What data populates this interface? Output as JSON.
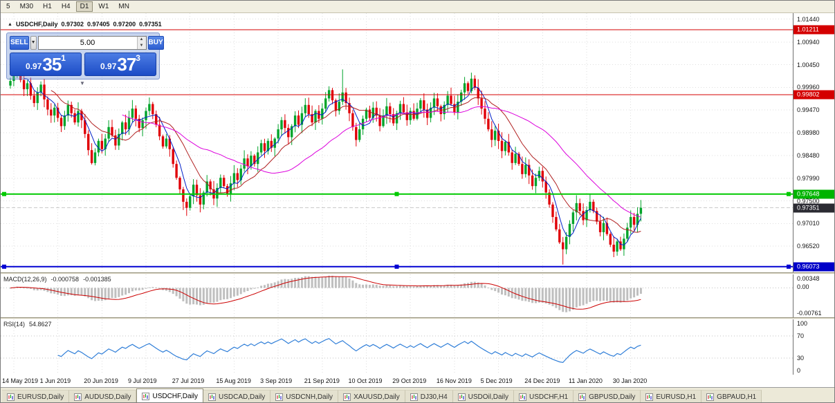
{
  "toolbar": {
    "timeframes": [
      "5",
      "M30",
      "H1",
      "H4",
      "D1",
      "W1",
      "MN"
    ],
    "active": "D1"
  },
  "chart_header": {
    "symbol": "USDCHF,Daily",
    "open": "0.97302",
    "high": "0.97405",
    "low": "0.97200",
    "close": "0.97351"
  },
  "one_click": {
    "sell_label": "SELL",
    "buy_label": "BUY",
    "volume": "5.00",
    "sell_price": {
      "small": "0.97",
      "big": "35",
      "sup": "1"
    },
    "buy_price": {
      "small": "0.97",
      "big": "37",
      "sup": "3"
    },
    "collapse_icon": "▼"
  },
  "price_axis": {
    "ticks": [
      "1.01440",
      "1.00940",
      "1.00450",
      "0.99960",
      "0.99470",
      "0.98980",
      "0.98480",
      "0.97990",
      "0.97500",
      "0.97010",
      "0.96520"
    ],
    "bid_badge": "0.97351",
    "bid_badge_bg": "#2b2b33"
  },
  "hlines": [
    {
      "price": 1.01211,
      "label": "1.01211",
      "color": "#d40000",
      "badge_bg": "#d40000",
      "width": 1,
      "handles": false
    },
    {
      "price": 0.99802,
      "label": "0.99802",
      "color": "#d40000",
      "badge_bg": "#d40000",
      "width": 1,
      "handles": false
    },
    {
      "price": 0.97648,
      "label": "0.97648",
      "color": "#00ca00",
      "badge_bg": "#00b400",
      "width": 2,
      "handles": true
    },
    {
      "price": 0.96073,
      "label": "0.96073",
      "color": "#0000d2",
      "badge_bg": "#0000c8",
      "width": 2,
      "handles": true
    }
  ],
  "macd_panel": {
    "label": "MACD(12,26,9)",
    "value_main": "-0.000758",
    "value_signal": "-0.001385",
    "axis_top": "0.00348",
    "axis_zero": "0.00",
    "axis_bottom": "-0.00761",
    "scale_max": 0.00348,
    "scale_min": -0.00761
  },
  "rsi_panel": {
    "label": "RSI(14)",
    "value": "54.8627",
    "axis": [
      "100",
      "70",
      "30",
      "0"
    ],
    "levels": [
      70,
      30
    ]
  },
  "date_axis": {
    "labels": [
      "14 May 2019",
      "1 Jun 2019",
      "20 Jun 2019",
      "9 Jul 2019",
      "27 Jul 2019",
      "15 Aug 2019",
      "3 Sep 2019",
      "21 Sep 2019",
      "10 Oct 2019",
      "29 Oct 2019",
      "16 Nov 2019",
      "5 Dec 2019",
      "24 Dec 2019",
      "11 Jan 2020",
      "30 Jan 2020"
    ],
    "bars": [
      1,
      14,
      27,
      40,
      53,
      66,
      79,
      92,
      105,
      118,
      131,
      144,
      157,
      170,
      183
    ]
  },
  "tabs": {
    "items": [
      "EURUSD,Daily",
      "AUDUSD,Daily",
      "USDCHF,Daily",
      "USDCAD,Daily",
      "USDCNH,Daily",
      "XAUUSD,Daily",
      "DJ30,H4",
      "USDOil,Daily",
      "USDCHF,H1",
      "GBPUSD,Daily",
      "EURUSD,H1",
      "GBPAUD,H1"
    ],
    "active_index": 2
  },
  "chart_data": {
    "type": "candlestick",
    "symbol": "USDCHF",
    "timeframe": "Daily",
    "price_range": [
      0.9595,
      1.0157
    ],
    "first_open": 1.0,
    "closes": [
      1.001,
      1.0028,
      1.0035,
      1.0012,
      0.9992,
      1.0005,
      0.9978,
      0.9962,
      0.9985,
      1.0002,
      0.997,
      0.9948,
      0.9935,
      0.9952,
      0.993,
      0.9912,
      0.9935,
      0.9958,
      0.994,
      0.992,
      0.9945,
      0.9925,
      0.9895,
      0.986,
      0.9832,
      0.9855,
      0.988,
      0.9862,
      0.9885,
      0.991,
      0.9892,
      0.987,
      0.9895,
      0.992,
      0.9905,
      0.993,
      0.995,
      0.9928,
      0.9908,
      0.9925,
      0.9945,
      0.996,
      0.9938,
      0.9915,
      0.989,
      0.9868,
      0.9885,
      0.9862,
      0.983,
      0.98,
      0.9775,
      0.9748,
      0.9735,
      0.976,
      0.9785,
      0.9762,
      0.9742,
      0.9768,
      0.9792,
      0.9775,
      0.9755,
      0.9778,
      0.98,
      0.9782,
      0.9765,
      0.9788,
      0.981,
      0.9795,
      0.982,
      0.9842,
      0.9825,
      0.9848,
      0.983,
      0.9855,
      0.9875,
      0.9858,
      0.988,
      0.9865,
      0.9885,
      0.9905,
      0.9925,
      0.9908,
      0.9888,
      0.9912,
      0.9935,
      0.9915,
      0.994,
      0.9958,
      0.9938,
      0.992,
      0.9945,
      0.9928,
      0.995,
      0.9972,
      0.999,
      0.9968,
      0.9945,
      0.9965,
      0.9985,
      0.9962,
      0.994,
      0.991,
      0.9882,
      0.9905,
      0.9928,
      0.9948,
      0.993,
      0.9952,
      0.9935,
      0.9912,
      0.9935,
      0.9955,
      0.9938,
      0.9918,
      0.994,
      0.996,
      0.9942,
      0.9925,
      0.9945,
      0.9928,
      0.995,
      0.9968,
      0.9948,
      0.993,
      0.9952,
      0.9972,
      0.9955,
      0.9938,
      0.9958,
      0.9978,
      0.996,
      0.9942,
      0.9965,
      0.9985,
      1.0005,
      0.9988,
      1.0015,
      0.9995,
      0.9972,
      0.995,
      0.9928,
      0.9905,
      0.9882,
      0.9902,
      0.988,
      0.9858,
      0.9878,
      0.9855,
      0.9832,
      0.9852,
      0.983,
      0.9808,
      0.9828,
      0.9805,
      0.9782,
      0.98,
      0.9815,
      0.9792,
      0.9768,
      0.9742,
      0.9715,
      0.9688,
      0.966,
      0.9645,
      0.9672,
      0.97,
      0.9725,
      0.9745,
      0.9728,
      0.9708,
      0.973,
      0.9748,
      0.9728,
      0.9705,
      0.9682,
      0.9702,
      0.9678,
      0.9655,
      0.964,
      0.9662,
      0.9645,
      0.9668,
      0.9692,
      0.9715,
      0.9698,
      0.9722,
      0.9735
    ],
    "overrides": {
      "high": {
        "2": 1.0042,
        "98": 1.0035,
        "136": 1.0028
      },
      "low": {
        "163": 0.9612,
        "178": 0.9628
      }
    },
    "ma_periods": [
      5,
      13,
      34
    ],
    "ma_colors": [
      "#0020c8",
      "#b02020",
      "#dc00dc"
    ],
    "up_color": "#00a42a",
    "down_color": "#e00007",
    "grid_color": "#dedede",
    "macd": {
      "fast": 12,
      "slow": 26,
      "signal": 9,
      "hist_color": "#bfbfbf",
      "signal_color": "#cc0000"
    },
    "rsi_period": 14,
    "rsi_color": "#2f7ed8"
  }
}
